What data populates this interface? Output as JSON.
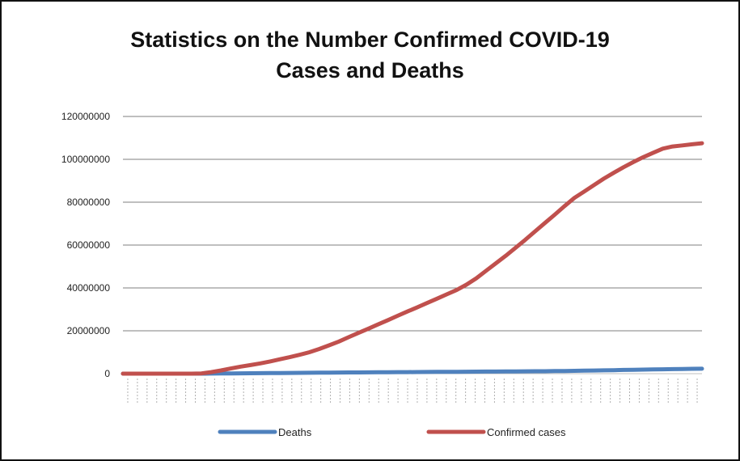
{
  "chart_data": {
    "type": "line",
    "title": "Statistics on the Number Confirmed COVID-19 Cases and Deaths",
    "title_lines": [
      "Statistics on the Number Confirmed COVID-19",
      "Cases and Deaths"
    ],
    "xlabel": "",
    "ylabel": "",
    "ylim": [
      0,
      120000000
    ],
    "yticks": [
      0,
      20000000,
      40000000,
      60000000,
      80000000,
      100000000,
      120000000
    ],
    "ytick_labels": [
      "0",
      "20000000",
      "40000000",
      "60000000",
      "80000000",
      "100000000",
      "120000000"
    ],
    "x_tick_count": 60,
    "grid": "horizontal",
    "legend_position": "bottom",
    "series": [
      {
        "name": "Deaths",
        "color": "#4f81bd",
        "values": [
          0,
          0,
          0,
          0,
          0,
          0,
          0,
          0,
          5000,
          30000,
          60000,
          100000,
          140000,
          180000,
          220000,
          260000,
          300000,
          340000,
          380000,
          420000,
          460000,
          490000,
          520000,
          550000,
          580000,
          610000,
          640000,
          670000,
          700000,
          730000,
          760000,
          790000,
          820000,
          850000,
          880000,
          910000,
          940000,
          970000,
          1000000,
          1030000,
          1060000,
          1090000,
          1120000,
          1150000,
          1200000,
          1260000,
          1330000,
          1400000,
          1480000,
          1560000,
          1640000,
          1720000,
          1800000,
          1880000,
          1960000,
          2040000,
          2120000,
          2200000,
          2260000,
          2300000
        ]
      },
      {
        "name": "Confirmed cases",
        "color": "#c0504d",
        "values": [
          0,
          0,
          0,
          0,
          0,
          0,
          0,
          0,
          100000,
          700000,
          1500000,
          2400000,
          3300000,
          4000000,
          4800000,
          5700000,
          6700000,
          7700000,
          8800000,
          10000000,
          11500000,
          13200000,
          15000000,
          17000000,
          19000000,
          21000000,
          23000000,
          25000000,
          27000000,
          29000000,
          31000000,
          33000000,
          35000000,
          37000000,
          39000000,
          41500000,
          44500000,
          48000000,
          51500000,
          55000000,
          58700000,
          62500000,
          66400000,
          70300000,
          74200000,
          78200000,
          82000000,
          85000000,
          88000000,
          91000000,
          93700000,
          96300000,
          98700000,
          101000000,
          103000000,
          105000000,
          106000000,
          106500000,
          107000000,
          107500000
        ]
      }
    ]
  }
}
